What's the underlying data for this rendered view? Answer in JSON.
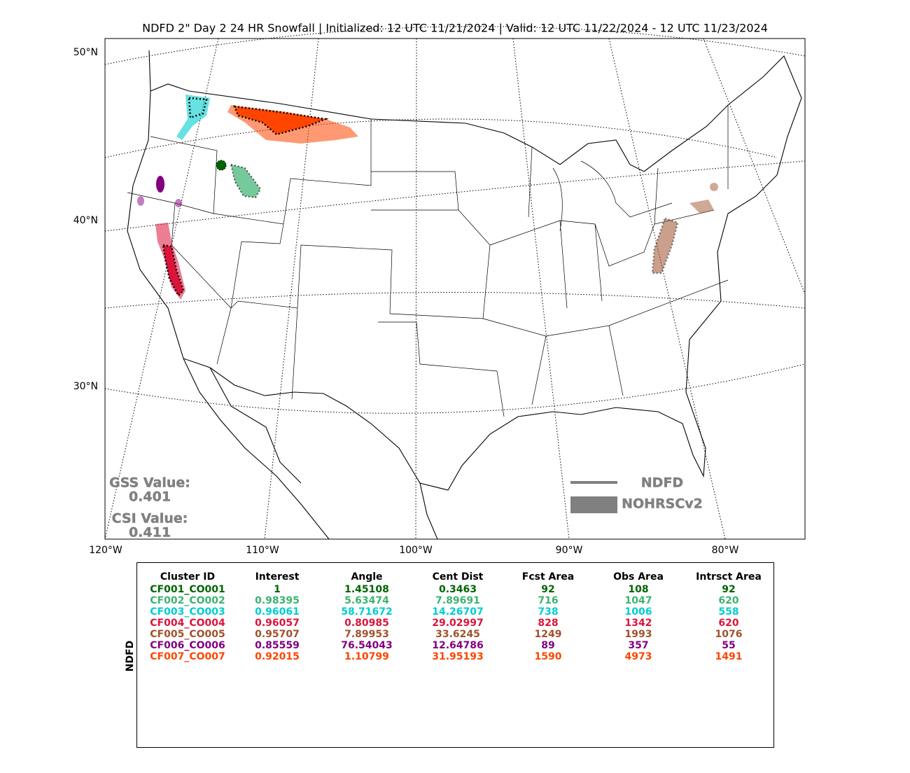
{
  "title": "NDFD 2\" Day 2 24 HR Snowfall | Initialized: 12 UTC 11/21/2024 | Valid: 12 UTC 11/22/2024 - 12 UTC 11/23/2024",
  "map": {
    "lat_labels": [
      "50°N",
      "40°N",
      "30°N"
    ],
    "lon_labels": [
      "120°W",
      "110°W",
      "100°W",
      "90°W",
      "80°W"
    ]
  },
  "scores": {
    "gss_label": "GSS Value:",
    "gss_value": "0.401",
    "csi_label": "CSI Value:",
    "csi_value": "0.411"
  },
  "legend": {
    "forecast": "NDFD",
    "observed": "NOHRSCv2",
    "color": "#808080"
  },
  "table": {
    "side_label": "NDFD",
    "header": [
      "Cluster ID",
      "Interest",
      "Angle",
      "Cent Dist",
      "Fcst Area",
      "Obs Area",
      "Intrsct Area"
    ],
    "rows": [
      {
        "color": "#006400",
        "cells": [
          "CF001_CO001",
          1,
          1.45108,
          0.3463,
          92,
          108,
          92
        ]
      },
      {
        "color": "#3cb371",
        "cells": [
          "CF002_CO002",
          0.98395,
          5.63474,
          7.89691,
          716,
          1047,
          620
        ]
      },
      {
        "color": "#00ced1",
        "cells": [
          "CF003_CO003",
          0.96061,
          58.71672,
          14.26707,
          738,
          1006,
          558
        ]
      },
      {
        "color": "#dc143c",
        "cells": [
          "CF004_CO004",
          0.96057,
          0.80985,
          29.02997,
          828,
          1342,
          620
        ]
      },
      {
        "color": "#a0522d",
        "cells": [
          "CF005_CO005",
          0.95707,
          7.89953,
          33.6245,
          1249,
          1993,
          1076
        ]
      },
      {
        "color": "#800080",
        "cells": [
          "CF006_CO006",
          0.85559,
          76.54043,
          12.64786,
          89,
          357,
          55
        ]
      },
      {
        "color": "#ff4500",
        "cells": [
          "CF007_CO007",
          0.92015,
          1.10799,
          31.95193,
          1590,
          4973,
          1491
        ]
      }
    ]
  }
}
